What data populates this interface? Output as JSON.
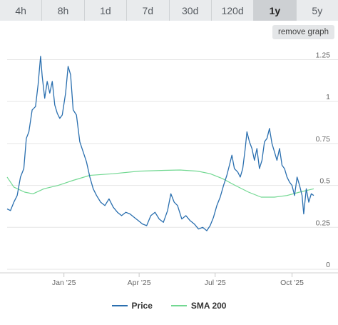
{
  "tabs": [
    {
      "label": "4h",
      "active": false
    },
    {
      "label": "8h",
      "active": false
    },
    {
      "label": "1d",
      "active": false
    },
    {
      "label": "7d",
      "active": false
    },
    {
      "label": "30d",
      "active": false
    },
    {
      "label": "120d",
      "active": false
    },
    {
      "label": "1y",
      "active": true
    },
    {
      "label": "5y",
      "active": false
    }
  ],
  "remove_graph_label": "remove graph",
  "colors": {
    "price": "#2a6faf",
    "sma": "#72d892",
    "grid": "#e6e6e6"
  },
  "chart_data": {
    "type": "line",
    "xlabel": "",
    "ylabel": "",
    "ylim": [
      0,
      1.35
    ],
    "yticks": [
      0,
      0.25,
      0.5,
      0.75,
      1,
      1.25
    ],
    "ytick_labels": [
      "0",
      "0.25",
      "0.5",
      "0.75",
      "1",
      "1.25"
    ],
    "xticks": [
      {
        "date": "2025-01-01",
        "label": "Jan '25"
      },
      {
        "date": "2025-04-01",
        "label": "Apr '25"
      },
      {
        "date": "2025-07-01",
        "label": "Jul '25"
      },
      {
        "date": "2025-10-01",
        "label": "Oct '25"
      }
    ],
    "xlim": [
      "2024-10-25",
      "2025-10-27"
    ],
    "grid": true,
    "legend_position": "bottom",
    "series": [
      {
        "name": "Price",
        "points": [
          [
            "2024-10-25",
            0.36
          ],
          [
            "2024-10-29",
            0.35
          ],
          [
            "2024-11-02",
            0.4
          ],
          [
            "2024-11-06",
            0.44
          ],
          [
            "2024-11-10",
            0.55
          ],
          [
            "2024-11-14",
            0.6
          ],
          [
            "2024-11-17",
            0.78
          ],
          [
            "2024-11-20",
            0.82
          ],
          [
            "2024-11-24",
            0.95
          ],
          [
            "2024-11-28",
            0.97
          ],
          [
            "2024-12-01",
            1.1
          ],
          [
            "2024-12-04",
            1.27
          ],
          [
            "2024-12-06",
            1.15
          ],
          [
            "2024-12-09",
            1.02
          ],
          [
            "2024-12-12",
            1.12
          ],
          [
            "2024-12-15",
            1.05
          ],
          [
            "2024-12-18",
            1.12
          ],
          [
            "2024-12-21",
            0.98
          ],
          [
            "2024-12-24",
            0.93
          ],
          [
            "2024-12-27",
            0.9
          ],
          [
            "2024-12-30",
            0.92
          ],
          [
            "2025-01-03",
            1.05
          ],
          [
            "2025-01-06",
            1.21
          ],
          [
            "2025-01-09",
            1.16
          ],
          [
            "2025-01-12",
            0.95
          ],
          [
            "2025-01-16",
            0.92
          ],
          [
            "2025-01-20",
            0.76
          ],
          [
            "2025-01-24",
            0.7
          ],
          [
            "2025-01-28",
            0.64
          ],
          [
            "2025-02-01",
            0.55
          ],
          [
            "2025-02-05",
            0.48
          ],
          [
            "2025-02-09",
            0.44
          ],
          [
            "2025-02-14",
            0.4
          ],
          [
            "2025-02-19",
            0.38
          ],
          [
            "2025-02-24",
            0.42
          ],
          [
            "2025-03-01",
            0.37
          ],
          [
            "2025-03-06",
            0.34
          ],
          [
            "2025-03-11",
            0.32
          ],
          [
            "2025-03-16",
            0.34
          ],
          [
            "2025-03-21",
            0.33
          ],
          [
            "2025-03-26",
            0.31
          ],
          [
            "2025-03-31",
            0.29
          ],
          [
            "2025-04-05",
            0.27
          ],
          [
            "2025-04-10",
            0.26
          ],
          [
            "2025-04-15",
            0.32
          ],
          [
            "2025-04-20",
            0.34
          ],
          [
            "2025-04-25",
            0.3
          ],
          [
            "2025-04-30",
            0.28
          ],
          [
            "2025-05-05",
            0.35
          ],
          [
            "2025-05-09",
            0.45
          ],
          [
            "2025-05-13",
            0.4
          ],
          [
            "2025-05-17",
            0.38
          ],
          [
            "2025-05-22",
            0.3
          ],
          [
            "2025-05-27",
            0.32
          ],
          [
            "2025-06-01",
            0.29
          ],
          [
            "2025-06-06",
            0.27
          ],
          [
            "2025-06-11",
            0.24
          ],
          [
            "2025-06-16",
            0.25
          ],
          [
            "2025-06-21",
            0.23
          ],
          [
            "2025-06-25",
            0.26
          ],
          [
            "2025-06-29",
            0.31
          ],
          [
            "2025-07-03",
            0.38
          ],
          [
            "2025-07-07",
            0.43
          ],
          [
            "2025-07-11",
            0.5
          ],
          [
            "2025-07-15",
            0.56
          ],
          [
            "2025-07-18",
            0.62
          ],
          [
            "2025-07-21",
            0.68
          ],
          [
            "2025-07-24",
            0.6
          ],
          [
            "2025-07-28",
            0.58
          ],
          [
            "2025-07-31",
            0.55
          ],
          [
            "2025-08-03",
            0.6
          ],
          [
            "2025-08-06",
            0.72
          ],
          [
            "2025-08-08",
            0.82
          ],
          [
            "2025-08-11",
            0.76
          ],
          [
            "2025-08-14",
            0.72
          ],
          [
            "2025-08-17",
            0.65
          ],
          [
            "2025-08-20",
            0.72
          ],
          [
            "2025-08-23",
            0.6
          ],
          [
            "2025-08-26",
            0.65
          ],
          [
            "2025-08-29",
            0.76
          ],
          [
            "2025-09-01",
            0.78
          ],
          [
            "2025-09-04",
            0.84
          ],
          [
            "2025-09-07",
            0.75
          ],
          [
            "2025-09-10",
            0.7
          ],
          [
            "2025-09-13",
            0.65
          ],
          [
            "2025-09-16",
            0.72
          ],
          [
            "2025-09-19",
            0.62
          ],
          [
            "2025-09-22",
            0.6
          ],
          [
            "2025-09-25",
            0.55
          ],
          [
            "2025-09-28",
            0.52
          ],
          [
            "2025-10-01",
            0.5
          ],
          [
            "2025-10-04",
            0.44
          ],
          [
            "2025-10-07",
            0.55
          ],
          [
            "2025-10-10",
            0.5
          ],
          [
            "2025-10-13",
            0.44
          ],
          [
            "2025-10-15",
            0.33
          ],
          [
            "2025-10-18",
            0.48
          ],
          [
            "2025-10-21",
            0.4
          ],
          [
            "2025-10-24",
            0.45
          ],
          [
            "2025-10-27",
            0.44
          ]
        ]
      },
      {
        "name": "SMA 200",
        "points": [
          [
            "2024-10-25",
            0.55
          ],
          [
            "2024-11-02",
            0.49
          ],
          [
            "2024-11-15",
            0.46
          ],
          [
            "2024-11-25",
            0.45
          ],
          [
            "2024-12-08",
            0.48
          ],
          [
            "2024-12-25",
            0.5
          ],
          [
            "2025-01-12",
            0.53
          ],
          [
            "2025-02-01",
            0.56
          ],
          [
            "2025-03-01",
            0.57
          ],
          [
            "2025-04-01",
            0.585
          ],
          [
            "2025-05-01",
            0.59
          ],
          [
            "2025-05-20",
            0.592
          ],
          [
            "2025-06-10",
            0.585
          ],
          [
            "2025-06-25",
            0.57
          ],
          [
            "2025-07-10",
            0.54
          ],
          [
            "2025-07-25",
            0.5
          ],
          [
            "2025-08-10",
            0.46
          ],
          [
            "2025-08-25",
            0.43
          ],
          [
            "2025-09-10",
            0.43
          ],
          [
            "2025-09-25",
            0.44
          ],
          [
            "2025-10-10",
            0.46
          ],
          [
            "2025-10-27",
            0.48
          ]
        ]
      }
    ]
  }
}
